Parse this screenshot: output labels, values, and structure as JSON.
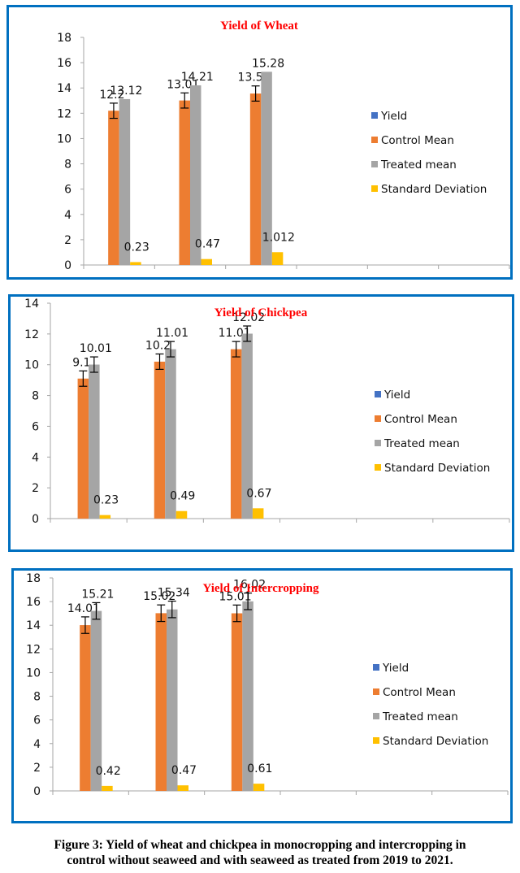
{
  "caption": {
    "line1": "Figure 3: Yield of wheat and chickpea in monocropping and intercropping in",
    "line2": "control without seaweed and with seaweed as treated from 2019 to 2021."
  },
  "colors": {
    "frame": "#0070c0",
    "title": "#ff0000",
    "Yield": "#4472c4",
    "Control Mean": "#ed7d31",
    "Treated mean": "#a5a5a5",
    "Standard Deviation": "#ffc000"
  },
  "chart_data": [
    {
      "type": "bar",
      "title": "Yield of Wheat",
      "xlabel": "",
      "ylabel": "",
      "ylim": [
        0,
        18
      ],
      "yticks": [
        0,
        2,
        4,
        6,
        8,
        10,
        12,
        14,
        16,
        18
      ],
      "categories": [
        "",
        "",
        "",
        "",
        "",
        ""
      ],
      "legend": [
        "Yield",
        "Control Mean",
        "Treated mean",
        "Standard Deviation"
      ],
      "legend_position": "right",
      "grid": false,
      "series": [
        {
          "name": "Yield",
          "values": [
            null,
            null,
            null,
            null,
            null,
            null
          ]
        },
        {
          "name": "Control Mean",
          "values": [
            12.2,
            13.01,
            13.56,
            null,
            null,
            null
          ],
          "labels": [
            "12.2",
            "13.01",
            "13.56"
          ],
          "error_bars": true
        },
        {
          "name": "Treated mean",
          "values": [
            13.12,
            14.21,
            15.28,
            null,
            null,
            null
          ],
          "labels": [
            "13.12",
            "14.21",
            "15.28"
          ],
          "error_bars": false
        },
        {
          "name": "Standard Deviation",
          "values": [
            0.23,
            0.47,
            1.012,
            null,
            null,
            null
          ],
          "labels": [
            "0.23",
            "0.47",
            "1.012"
          ]
        }
      ]
    },
    {
      "type": "bar",
      "title": "Yield of Chickpea",
      "xlabel": "",
      "ylabel": "",
      "ylim": [
        0,
        14
      ],
      "yticks": [
        0,
        2,
        4,
        6,
        8,
        10,
        12,
        14
      ],
      "categories": [
        "",
        "",
        "",
        "",
        "",
        ""
      ],
      "legend": [
        "Yield",
        "Control Mean",
        "Treated mean",
        "Standard Deviation"
      ],
      "legend_position": "right",
      "grid": false,
      "series": [
        {
          "name": "Yield",
          "values": [
            null,
            null,
            null,
            null,
            null,
            null
          ]
        },
        {
          "name": "Control Mean",
          "values": [
            9.1,
            10.2,
            11.01,
            null,
            null,
            null
          ],
          "labels": [
            "9.1",
            "10.2",
            "11.01"
          ],
          "error_bars": true
        },
        {
          "name": "Treated mean",
          "values": [
            10.01,
            11.01,
            12.02,
            null,
            null,
            null
          ],
          "labels": [
            "10.01",
            "11.01",
            "12.02"
          ],
          "error_bars": true
        },
        {
          "name": "Standard Deviation",
          "values": [
            0.23,
            0.49,
            0.67,
            null,
            null,
            null
          ],
          "labels": [
            "0.23",
            "0.49",
            "0.67"
          ]
        }
      ]
    },
    {
      "type": "bar",
      "title": "Yield of Intercropping",
      "xlabel": "",
      "ylabel": "",
      "ylim": [
        0,
        18
      ],
      "yticks": [
        0,
        2,
        4,
        6,
        8,
        10,
        12,
        14,
        16,
        18
      ],
      "categories": [
        "",
        "",
        "",
        "",
        "",
        ""
      ],
      "legend": [
        "Yield",
        "Control Mean",
        "Treated mean",
        "Standard Deviation"
      ],
      "legend_position": "right",
      "grid": false,
      "series": [
        {
          "name": "Yield",
          "values": [
            null,
            null,
            null,
            null,
            null,
            null
          ]
        },
        {
          "name": "Control Mean",
          "values": [
            14.01,
            15.02,
            15.01,
            null,
            null,
            null
          ],
          "labels": [
            "14.01",
            "15.02",
            "15.01"
          ],
          "error_bars": true
        },
        {
          "name": "Treated mean",
          "values": [
            15.21,
            15.34,
            16.02,
            null,
            null,
            null
          ],
          "labels": [
            "15.21",
            "15.34",
            "16.02"
          ],
          "error_bars": true
        },
        {
          "name": "Standard Deviation",
          "values": [
            0.42,
            0.47,
            0.61,
            null,
            null,
            null
          ],
          "labels": [
            "0.42",
            "0.47",
            "0.61"
          ]
        }
      ]
    }
  ]
}
